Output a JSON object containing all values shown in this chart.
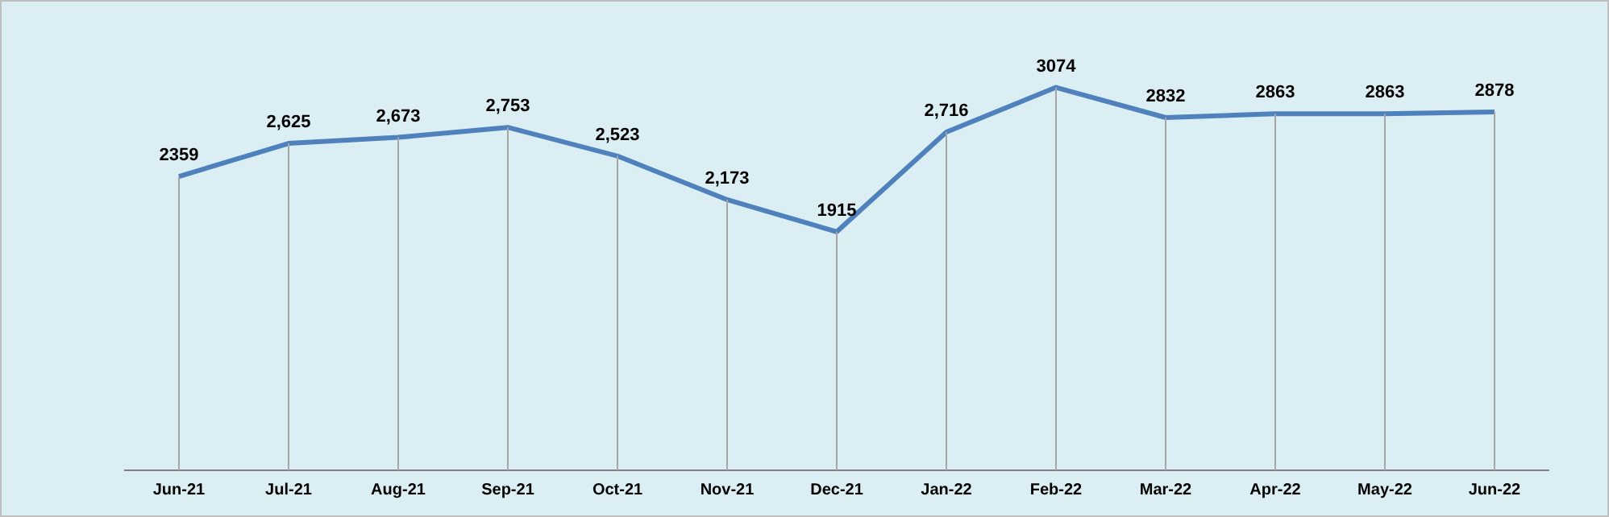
{
  "chart_data": {
    "type": "line",
    "categories": [
      "Jun-21",
      "Jul-21",
      "Aug-21",
      "Sep-21",
      "Oct-21",
      "Nov-21",
      "Dec-21",
      "Jan-22",
      "Feb-22",
      "Mar-22",
      "Apr-22",
      "May-22",
      "Jun-22"
    ],
    "series": [
      {
        "color": "#4f81bd",
        "values": [
          2359,
          2625,
          2673,
          2753,
          2523,
          2173,
          1915,
          2716,
          3074,
          2832,
          2863,
          2863,
          2878
        ],
        "value_labels": [
          "2359",
          "2,625",
          "2,673",
          "2,753",
          "2,523",
          "2,173",
          "1915",
          "2,716",
          "3074",
          "2832",
          "2863",
          "2863",
          "2878"
        ]
      }
    ],
    "marker": "none",
    "legend": false,
    "grid": "x"
  }
}
